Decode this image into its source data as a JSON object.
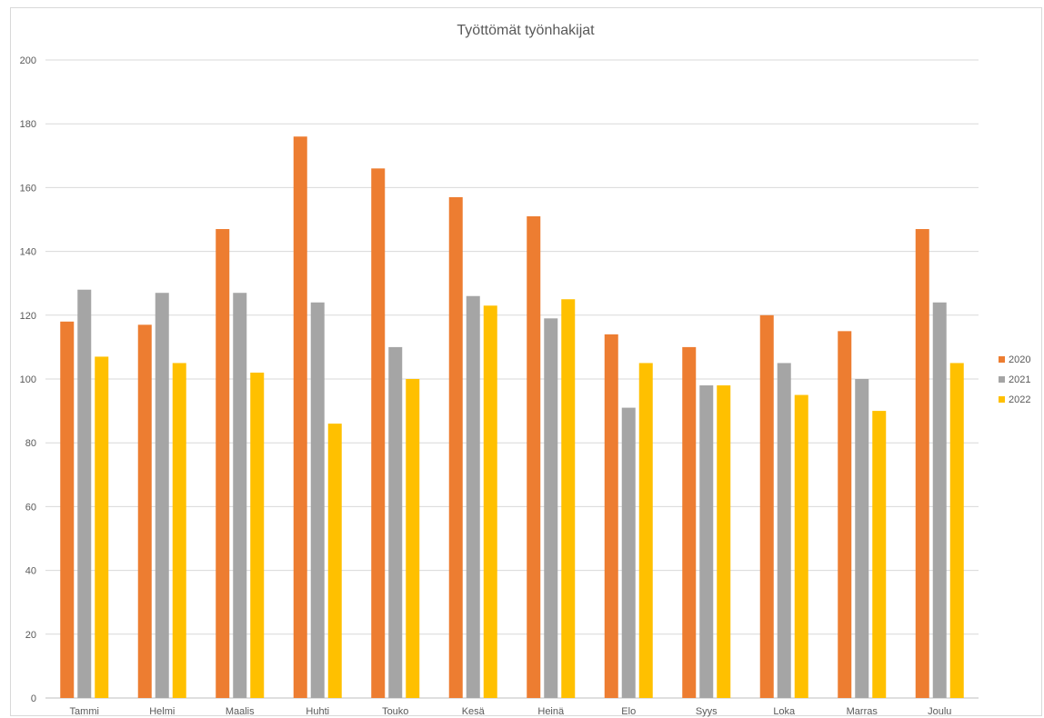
{
  "chart_data": {
    "type": "bar",
    "title": "Työttömät työnhakijat",
    "categories": [
      "Tammi",
      "Helmi",
      "Maalis",
      "Huhti",
      "Touko",
      "Kesä",
      "Heinä",
      "Elo",
      "Syys",
      "Loka",
      "Marras",
      "Joulu"
    ],
    "series": [
      {
        "name": "2020",
        "color": "#ED7D31",
        "values": [
          118,
          117,
          147,
          176,
          166,
          157,
          151,
          114,
          110,
          120,
          115,
          147
        ]
      },
      {
        "name": "2021",
        "color": "#A5A5A5",
        "values": [
          128,
          127,
          127,
          124,
          110,
          126,
          119,
          91,
          98,
          105,
          100,
          124
        ]
      },
      {
        "name": "2022",
        "color": "#FFC000",
        "values": [
          107,
          105,
          102,
          86,
          100,
          123,
          125,
          105,
          98,
          95,
          90,
          105
        ]
      }
    ],
    "yticks": [
      "0",
      "20",
      "40",
      "60",
      "80",
      "100",
      "120",
      "140",
      "160",
      "180",
      "200"
    ],
    "ylim": [
      0,
      200
    ],
    "grid": true,
    "legend": "right"
  }
}
